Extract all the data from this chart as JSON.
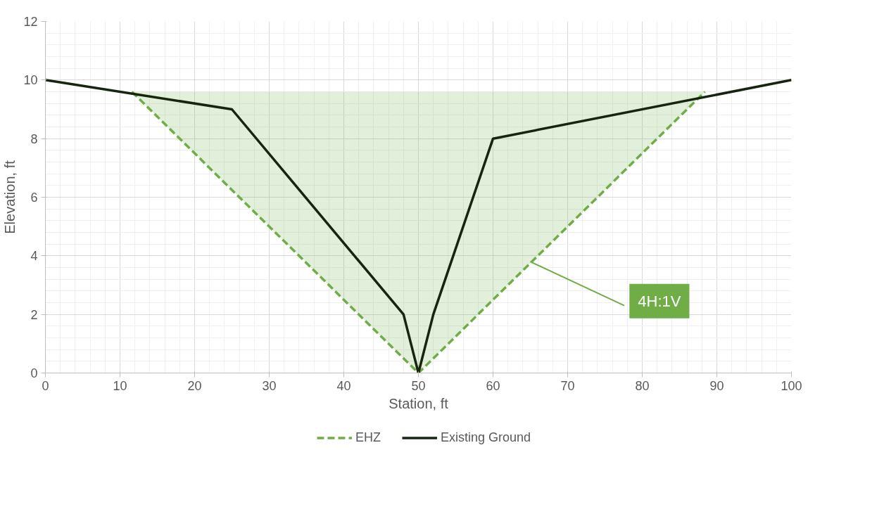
{
  "chart_data": {
    "type": "line",
    "xlabel": "Station, ft",
    "ylabel": "Elevation, ft",
    "xlim": [
      0,
      100
    ],
    "xticks": [
      0,
      10,
      20,
      30,
      40,
      50,
      60,
      70,
      80,
      90,
      100
    ],
    "ylim": [
      0,
      12
    ],
    "yticks": [
      0,
      2,
      4,
      6,
      8,
      10,
      12
    ],
    "grid": true,
    "legend": "bottom",
    "series": [
      {
        "name": "EHZ",
        "color": "#70ad47",
        "line_style": "dashed",
        "x": [
          11.6,
          50,
          88.4
        ],
        "values": [
          9.6,
          0,
          9.6
        ],
        "lower": [
          9.6,
          0,
          9.6
        ],
        "upper": [
          9.6,
          9.6,
          9.6
        ]
      },
      {
        "name": "Existing Ground",
        "color": "#15250f",
        "line_style": "solid",
        "x": [
          0,
          25,
          48,
          50,
          52,
          60,
          100
        ],
        "values": [
          10,
          9,
          2,
          0,
          2,
          8,
          10
        ]
      }
    ],
    "annotations": [
      {
        "text": "4H:1V",
        "x": 65,
        "y": 3.8
      }
    ]
  }
}
